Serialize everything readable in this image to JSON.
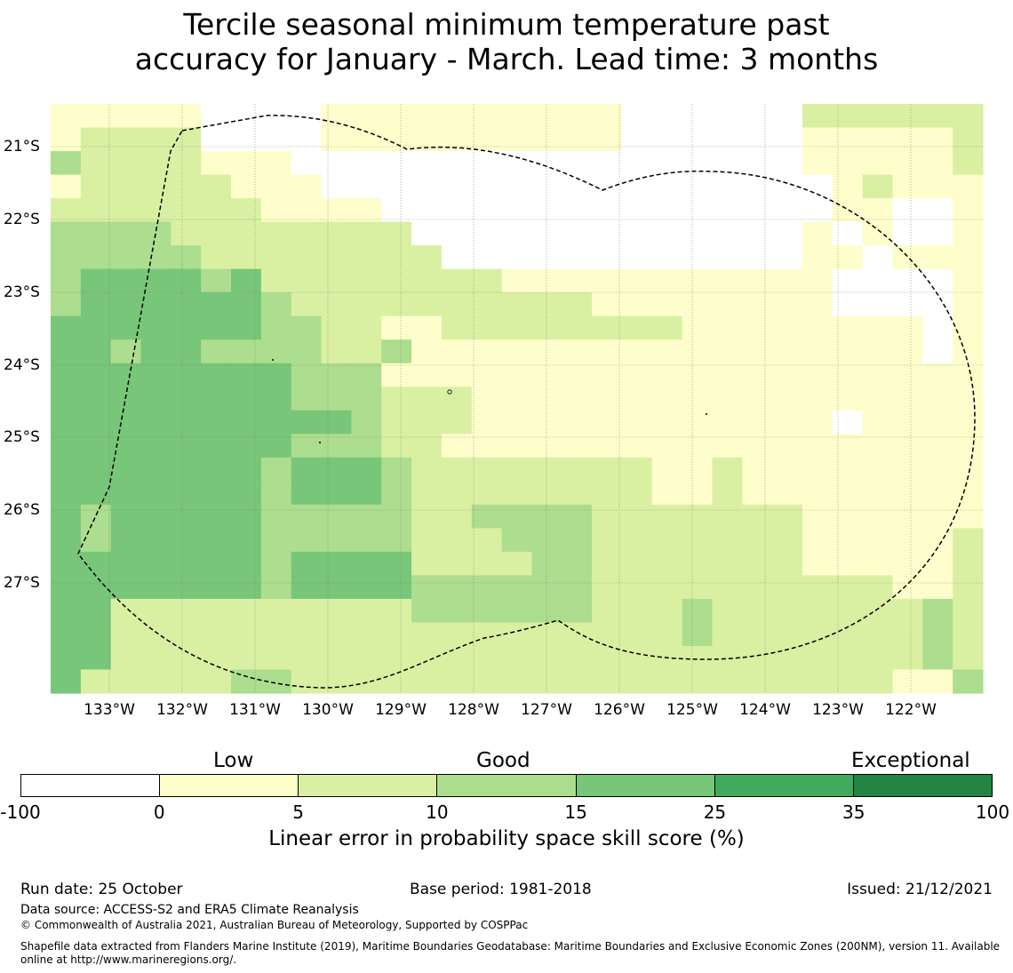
{
  "title_line1": "Tercile seasonal minimum temperature past",
  "title_line2": "accuracy for January - March. Lead time: 3 months",
  "map": {
    "lon_labels": [
      "133°W",
      "132°W",
      "131°W",
      "130°W",
      "129°W",
      "128°W",
      "127°W",
      "126°W",
      "125°W",
      "124°W",
      "123°W",
      "122°W"
    ],
    "lat_labels": [
      "21°S",
      "22°S",
      "23°S",
      "24°S",
      "25°S",
      "26°S",
      "27°S"
    ],
    "grid_colors": [
      "#ffffff",
      "#fefecc",
      "#d9f0a3",
      "#addd8e",
      "#78c679"
    ],
    "grid": [
      "1111100001111111111000000222222",
      "1222200001111111111000000111112",
      "3222211100000000000000000111112",
      "1222221110000000000000000012111",
      "2222222111100000000000000011001",
      "3333222222220000000000000101001",
      "3333322222222000000000000110111",
      "3444434222222221111111111100001",
      "3444444322222222221111111100001",
      "4444444332211222222221111111101",
      "4434433332231111111111111111101",
      "4444444433311111111111111111111",
      "4444444433322211111111111111111",
      "4444444444322211111111111101111",
      "4444444433322111111111111111111",
      "4444444344432222222211211111111",
      "4444444344432222222211211111111",
      "4344444333332233332222222111111",
      "4344444333332223332222222111112",
      "4444444344442222332222222111112",
      "4444444344443333332222222222112",
      "4422222222223333332223222222232",
      "4422222222222222222223222222232",
      "4422222222222222222222222222232",
      "4222223322222222222222222222113"
    ]
  },
  "legend": {
    "categories": [
      "Low",
      "Good",
      "Exceptional"
    ],
    "colors": [
      "#ffffff",
      "#ffffcc",
      "#d9f0a3",
      "#addd8e",
      "#78c679",
      "#41ab5d",
      "#238443"
    ],
    "ticks": [
      "-100",
      "0",
      "5",
      "10",
      "15",
      "25",
      "35",
      "100"
    ],
    "title": "Linear error in probability space skill score (%)"
  },
  "footer": {
    "run_date": "Run date: 25 October",
    "base_period": "Base period: 1981-2018",
    "issued": "Issued: 21/12/2021",
    "data_source": "Data source: ACCESS-S2 and ERA5 Climate Reanalysis",
    "copyright": "© Commonwealth of Australia 2021, Australian Bureau of Meteorology, Supported by COSPPac",
    "shapefile_line1": "Shapefile data extracted from Flanders Marine Institute (2019), Maritime Boundaries Geodatabase: Maritime Boundaries and Exclusive Economic Zones (200NM), version 11. Available",
    "shapefile_line2": "online at http://www.marineregions.org/."
  }
}
